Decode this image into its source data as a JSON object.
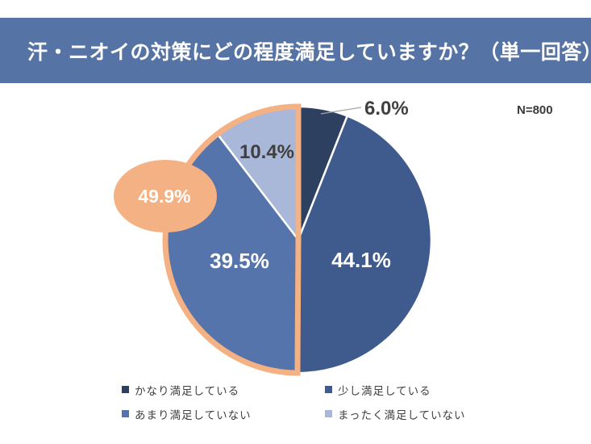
{
  "header": {
    "title": "汗・ニオイの対策にどの程度満足していますか？（単一回答）",
    "bg_color": "#5573A4",
    "text_color": "#FFFFFF"
  },
  "sample_size": "N=800",
  "chart_data": {
    "type": "pie",
    "title": "汗・ニオイの対策にどの程度満足していますか？（単一回答）",
    "start_angle_deg": 0,
    "direction": "clockwise",
    "segments": [
      {
        "label": "かなり満足している",
        "value": 6.0,
        "display": "6.0%",
        "color": "#2D4060",
        "highlight": false
      },
      {
        "label": "少し満足している",
        "value": 44.1,
        "display": "44.1%",
        "color": "#3F5A8C",
        "highlight": false
      },
      {
        "label": "あまり満足していない",
        "value": 39.5,
        "display": "39.5%",
        "color": "#5574AB",
        "highlight": true
      },
      {
        "label": "まったく満足していない",
        "value": 10.4,
        "display": "10.4%",
        "color": "#A9B8D9",
        "highlight": true
      }
    ],
    "highlight_callout": {
      "display": "49.9%",
      "value": 49.9,
      "color": "#F4B183",
      "text_color": "#FFFFFF"
    }
  },
  "legend": {
    "items": [
      {
        "label": "かなり満足している",
        "color": "#2D4060"
      },
      {
        "label": "少し満足している",
        "color": "#3F5A8C"
      },
      {
        "label": "あまり満足していない",
        "color": "#5574AB"
      },
      {
        "label": "まったく満足していない",
        "color": "#A9B8D9"
      }
    ]
  }
}
